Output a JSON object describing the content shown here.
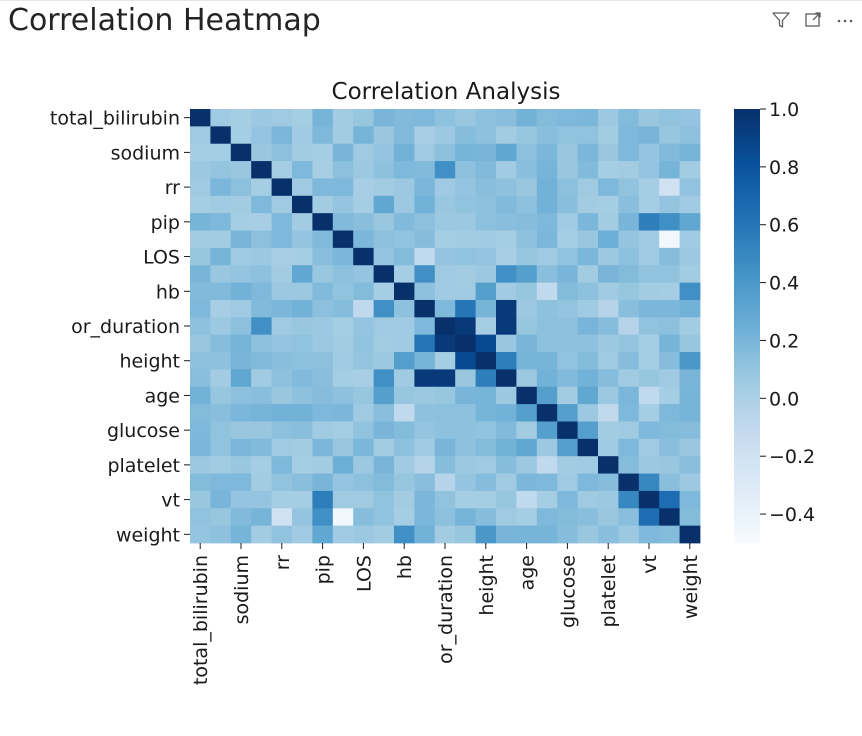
{
  "visual": {
    "title": "Correlation Heatmap",
    "icons": [
      "filter-icon",
      "focus-mode-icon",
      "more-options-icon"
    ]
  },
  "chart_data": {
    "type": "heatmap",
    "title": "Correlation Analysis",
    "colormap": "Blues",
    "color_low": "#f7fbff",
    "color_high": "#08306b",
    "clim": [
      -0.5,
      1.0
    ],
    "colorbar_ticks": [
      "1.0",
      "0.8",
      "0.6",
      "0.4",
      "0.2",
      "0.0",
      "−0.2",
      "−0.4"
    ],
    "colorbar_tick_values": [
      1.0,
      0.8,
      0.6,
      0.4,
      0.2,
      0.0,
      -0.2,
      -0.4
    ],
    "variables": [
      "total_bilirubin",
      "?",
      "sodium",
      "?",
      "rr",
      "?",
      "pip",
      "?",
      "LOS",
      "?",
      "hb",
      "?",
      "or_duration",
      "?",
      "height",
      "?",
      "age",
      "?",
      "glucose",
      "?",
      "platelet",
      "?",
      "vt",
      "?",
      "weight"
    ],
    "tick_labels": [
      "total_bilirubin",
      "sodium",
      "rr",
      "pip",
      "LOS",
      "hb",
      "or_duration",
      "height",
      "age",
      "glucose",
      "platelet",
      "vt",
      "weight"
    ],
    "tick_indices": [
      0,
      2,
      4,
      6,
      8,
      10,
      12,
      14,
      16,
      18,
      20,
      22,
      24
    ],
    "strong_pairs": [
      {
        "i": 12,
        "j": 13,
        "value": 0.95
      },
      {
        "i": 12,
        "j": 15,
        "value": 0.95
      },
      {
        "i": 11,
        "j": 15,
        "value": 0.95
      },
      {
        "i": 13,
        "j": 14,
        "value": 0.85
      },
      {
        "i": 11,
        "j": 13,
        "value": 0.6
      },
      {
        "i": 9,
        "j": 11,
        "value": 0.45
      },
      {
        "i": 9,
        "j": 15,
        "value": 0.45
      },
      {
        "i": 14,
        "j": 15,
        "value": 0.55
      },
      {
        "i": 16,
        "j": 17,
        "value": 0.35
      },
      {
        "i": 17,
        "j": 18,
        "value": 0.35
      },
      {
        "i": 18,
        "j": 19,
        "value": 0.35
      },
      {
        "i": 16,
        "j": 19,
        "value": 0.3
      },
      {
        "i": 22,
        "j": 23,
        "value": 0.65
      },
      {
        "i": 21,
        "j": 22,
        "value": 0.5
      },
      {
        "i": 3,
        "j": 12,
        "value": 0.45
      },
      {
        "i": 6,
        "j": 22,
        "value": 0.55
      },
      {
        "i": 6,
        "j": 23,
        "value": 0.45
      },
      {
        "i": 10,
        "j": 24,
        "value": 0.45
      },
      {
        "i": 14,
        "j": 24,
        "value": 0.4
      },
      {
        "i": 2,
        "j": 15,
        "value": 0.3
      },
      {
        "i": 5,
        "j": 9,
        "value": 0.3
      },
      {
        "i": 10,
        "j": 14,
        "value": 0.35
      },
      {
        "i": 16,
        "j": 9,
        "value": 0.35
      },
      {
        "i": 7,
        "j": 20,
        "value": 0.25
      },
      {
        "i": 6,
        "j": 24,
        "value": 0.3
      },
      {
        "i": 7,
        "j": 23,
        "value": -0.45
      },
      {
        "i": 4,
        "j": 23,
        "value": -0.2
      },
      {
        "i": 10,
        "j": 17,
        "value": -0.1
      },
      {
        "i": 8,
        "j": 11,
        "value": -0.1
      },
      {
        "i": 17,
        "j": 20,
        "value": -0.1
      },
      {
        "i": 11,
        "j": 20,
        "value": -0.05
      },
      {
        "i": 12,
        "j": 21,
        "value": -0.05
      },
      {
        "i": 16,
        "j": 22,
        "value": -0.1
      }
    ]
  }
}
